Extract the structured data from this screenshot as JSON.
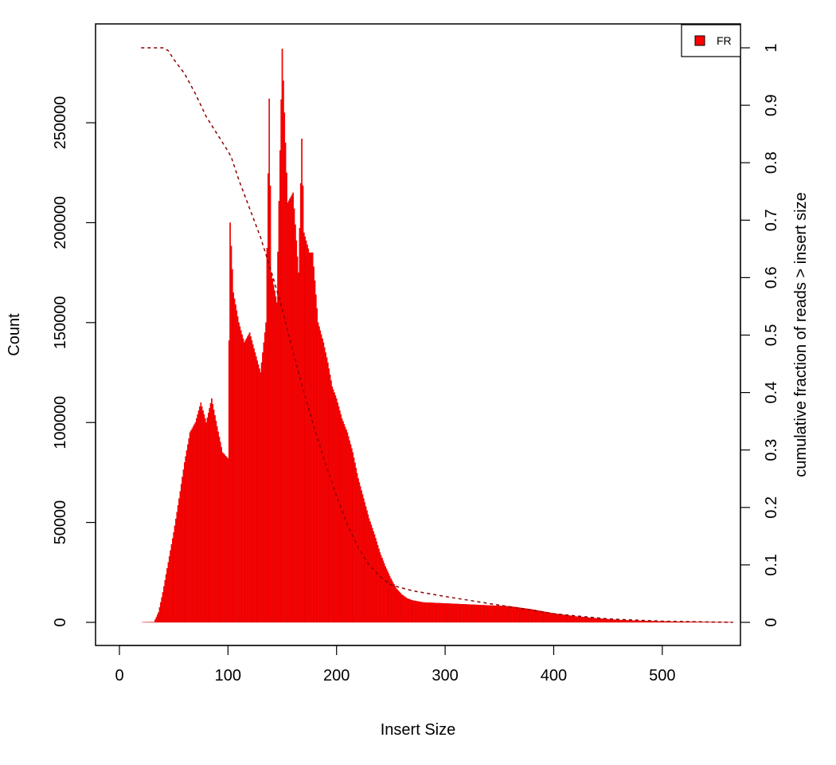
{
  "chart_data": {
    "type": "bar",
    "title": "",
    "xlabel": "Insert Size",
    "ylabel": "Count",
    "y2label": "cumulative fraction of reads > insert size",
    "xlim": [
      0,
      570
    ],
    "ylim": [
      0,
      290000
    ],
    "y2lim": [
      0,
      1
    ],
    "x_ticks": [
      0,
      100,
      200,
      300,
      400,
      500
    ],
    "y_ticks": [
      0,
      50000,
      100000,
      150000,
      200000,
      250000
    ],
    "y2_ticks": [
      "0",
      "0.1",
      "0.2",
      "0.3",
      "0.4",
      "0.5",
      "0.6",
      "0.7",
      "0.8",
      "0.9",
      "1"
    ],
    "grid": false,
    "legend": {
      "position": "top-right",
      "entries": [
        "FR"
      ]
    },
    "series": [
      {
        "name": "FR",
        "kind": "histogram",
        "color": "#ff0000",
        "profile": [
          [
            20,
            0
          ],
          [
            32,
            200
          ],
          [
            36,
            5000
          ],
          [
            40,
            15000
          ],
          [
            45,
            30000
          ],
          [
            50,
            45000
          ],
          [
            55,
            62000
          ],
          [
            60,
            80000
          ],
          [
            65,
            95000
          ],
          [
            70,
            100000
          ],
          [
            75,
            110000
          ],
          [
            80,
            100000
          ],
          [
            85,
            112000
          ],
          [
            90,
            98000
          ],
          [
            95,
            85000
          ],
          [
            100,
            82000
          ],
          [
            102,
            200000
          ],
          [
            105,
            165000
          ],
          [
            110,
            150000
          ],
          [
            115,
            140000
          ],
          [
            120,
            145000
          ],
          [
            125,
            135000
          ],
          [
            130,
            125000
          ],
          [
            135,
            150000
          ],
          [
            138,
            262000
          ],
          [
            140,
            175000
          ],
          [
            145,
            160000
          ],
          [
            150,
            287000
          ],
          [
            152,
            255000
          ],
          [
            155,
            210000
          ],
          [
            160,
            215000
          ],
          [
            165,
            175000
          ],
          [
            168,
            242000
          ],
          [
            170,
            195000
          ],
          [
            175,
            185000
          ],
          [
            178,
            185000
          ],
          [
            183,
            150000
          ],
          [
            188,
            140000
          ],
          [
            192,
            130000
          ],
          [
            196,
            118000
          ],
          [
            200,
            112000
          ],
          [
            205,
            102000
          ],
          [
            210,
            95000
          ],
          [
            215,
            85000
          ],
          [
            220,
            72000
          ],
          [
            225,
            62000
          ],
          [
            230,
            52000
          ],
          [
            235,
            44000
          ],
          [
            240,
            35000
          ],
          [
            245,
            28000
          ],
          [
            250,
            22000
          ],
          [
            255,
            17000
          ],
          [
            260,
            14000
          ],
          [
            265,
            12000
          ],
          [
            270,
            11000
          ],
          [
            280,
            10000
          ],
          [
            300,
            9500
          ],
          [
            320,
            9000
          ],
          [
            340,
            8500
          ],
          [
            360,
            8000
          ],
          [
            380,
            6500
          ],
          [
            400,
            4500
          ],
          [
            420,
            3000
          ],
          [
            440,
            2000
          ],
          [
            460,
            1200
          ],
          [
            480,
            800
          ],
          [
            500,
            500
          ],
          [
            520,
            300
          ],
          [
            540,
            200
          ],
          [
            565,
            100
          ]
        ]
      },
      {
        "name": "cumulative",
        "kind": "line",
        "style": "dashed",
        "color": "#8b0000",
        "axis": "right",
        "x": [
          20,
          40,
          45,
          50,
          60,
          70,
          80,
          90,
          100,
          103,
          110,
          120,
          130,
          140,
          150,
          160,
          170,
          180,
          190,
          200,
          210,
          220,
          230,
          240,
          250,
          260,
          270,
          300,
          350,
          400,
          450,
          500,
          565
        ],
        "y": [
          1.0,
          1.0,
          0.995,
          0.98,
          0.955,
          0.92,
          0.88,
          0.85,
          0.82,
          0.81,
          0.77,
          0.72,
          0.67,
          0.61,
          0.545,
          0.47,
          0.4,
          0.335,
          0.275,
          0.22,
          0.17,
          0.13,
          0.1,
          0.08,
          0.065,
          0.06,
          0.055,
          0.045,
          0.03,
          0.015,
          0.006,
          0.002,
          0.0
        ]
      }
    ]
  }
}
